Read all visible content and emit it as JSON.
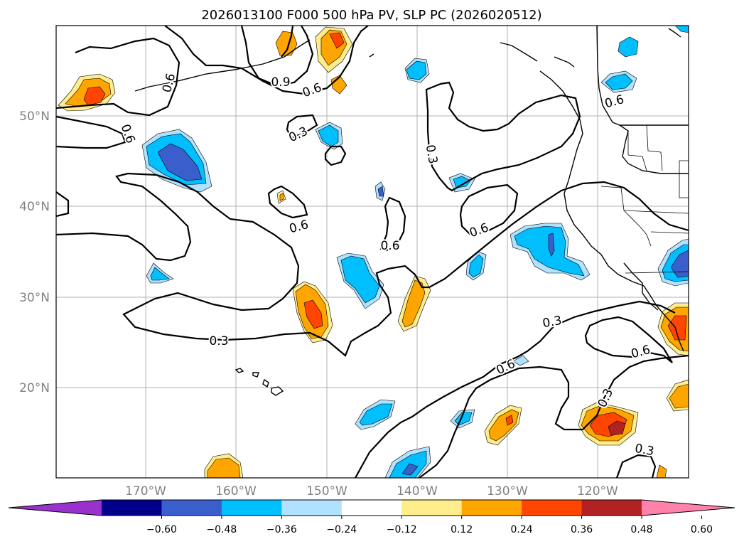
{
  "title": "2026013100 F000 500 hPa PV, SLP PC (2026020512)",
  "lat_labels": [
    "50°N",
    "40°N",
    "30°N",
    "20°N"
  ],
  "lon_labels": [
    "170°W",
    "160°W",
    "150°W",
    "140°W",
    "130°W",
    "120°W"
  ],
  "colorbar": {
    "ticks": [
      "−0.60",
      "−0.48",
      "−0.36",
      "−0.24",
      "−0.12",
      "0.12",
      "0.24",
      "0.36",
      "0.48",
      "0.60"
    ],
    "colors": [
      "#9932cc",
      "#00008b",
      "#3a5fcd",
      "#00bfff",
      "#b0e2ff",
      "#ffffff",
      "#ffec8b",
      "#ffa500",
      "#ff4500",
      "#b22222",
      "#ff82ab"
    ]
  },
  "contour_labels": {
    "c1": "0.6",
    "c2": "0.9",
    "c3": "0.6",
    "c4": "0.6",
    "c5": "0.3",
    "c6": "0.3",
    "c7": "0.6",
    "c8": "0.6",
    "c9": "0.6",
    "c10": "0.3",
    "c11": "0.3",
    "c12": "0.6",
    "c13": "0.6",
    "c14": "0.3",
    "c15": "0.3",
    "c16": "0.6"
  }
}
